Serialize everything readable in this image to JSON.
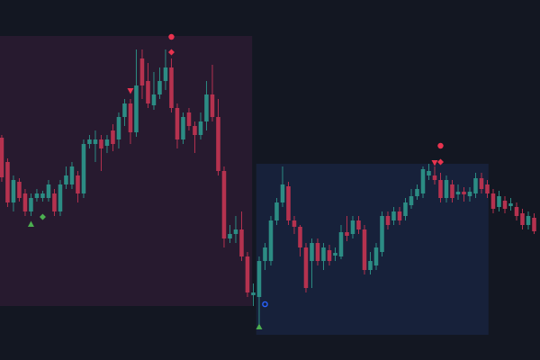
{
  "chart_data": {
    "type": "candlestick",
    "up_color": "#2c8c84",
    "down_color": "#b5324f",
    "xlim": [
      -0.3,
      92
    ],
    "ylim": [
      0,
      400
    ],
    "open": [
      247,
      220,
      175,
      198,
      185,
      165,
      180,
      180,
      180,
      185,
      165,
      195,
      195,
      205,
      185,
      240,
      240,
      245,
      238,
      255,
      245,
      270,
      285,
      253,
      335,
      310,
      283,
      295,
      310,
      325,
      280,
      245,
      275,
      260,
      250,
      265,
      295,
      270,
      210,
      135,
      140,
      145,
      115,
      72,
      70,
      110,
      110,
      155,
      175,
      193,
      155,
      148,
      125,
      110,
      130,
      110,
      122,
      116,
      115,
      142,
      140,
      155,
      145,
      100,
      105,
      120,
      160,
      155,
      165,
      160,
      172,
      182,
      185,
      205,
      205,
      200,
      180,
      195,
      184,
      187,
      182,
      185,
      202,
      195,
      185,
      170,
      177,
      171,
      170,
      163,
      150,
      158
    ],
    "high": [
      250,
      224,
      205,
      202,
      190,
      185,
      190,
      188,
      200,
      190,
      200,
      215,
      220,
      210,
      245,
      250,
      255,
      250,
      250,
      262,
      275,
      290,
      290,
      345,
      345,
      330,
      320,
      325,
      345,
      335,
      285,
      275,
      280,
      265,
      275,
      310,
      328,
      290,
      215,
      150,
      160,
      165,
      120,
      85,
      115,
      130,
      160,
      180,
      215,
      198,
      160,
      150,
      130,
      135,
      135,
      130,
      128,
      125,
      150,
      160,
      160,
      160,
      150,
      120,
      130,
      165,
      165,
      170,
      170,
      180,
      190,
      195,
      215,
      218,
      215,
      208,
      205,
      200,
      195,
      192,
      192,
      208,
      208,
      200,
      190,
      188,
      182,
      180,
      175,
      168,
      165,
      163
    ],
    "low": [
      198,
      170,
      165,
      176,
      160,
      160,
      176,
      176,
      176,
      160,
      160,
      190,
      190,
      175,
      180,
      235,
      220,
      210,
      230,
      232,
      235,
      260,
      240,
      248,
      290,
      280,
      278,
      290,
      300,
      275,
      235,
      240,
      255,
      230,
      245,
      255,
      265,
      205,
      125,
      130,
      130,
      110,
      70,
      60,
      40,
      100,
      105,
      150,
      170,
      150,
      140,
      115,
      75,
      80,
      105,
      100,
      105,
      110,
      112,
      132,
      135,
      140,
      95,
      95,
      100,
      115,
      145,
      150,
      150,
      155,
      168,
      178,
      180,
      200,
      195,
      175,
      175,
      175,
      178,
      176,
      176,
      180,
      185,
      180,
      163,
      165,
      163,
      166,
      155,
      145,
      145,
      140
    ],
    "close": [
      203,
      175,
      200,
      180,
      165,
      180,
      185,
      185,
      195,
      165,
      195,
      205,
      215,
      185,
      240,
      245,
      245,
      235,
      245,
      240,
      270,
      285,
      253,
      305,
      305,
      285,
      295,
      310,
      325,
      280,
      245,
      270,
      260,
      250,
      265,
      295,
      270,
      210,
      135,
      140,
      145,
      115,
      75,
      75,
      110,
      125,
      155,
      175,
      195,
      155,
      148,
      125,
      80,
      130,
      110,
      125,
      110,
      119,
      142,
      138,
      155,
      145,
      100,
      110,
      125,
      160,
      150,
      165,
      155,
      175,
      182,
      190,
      212,
      210,
      200,
      180,
      200,
      180,
      187,
      184,
      187,
      202,
      190,
      185,
      168,
      182,
      168,
      174,
      160,
      150,
      160,
      143
    ],
    "zones": [
      {
        "x": [
          -0.3,
          42.8
        ],
        "y": [
          60,
          360
        ],
        "color": "#271a2f"
      },
      {
        "x": [
          43.5,
          83.2
        ],
        "y": [
          28,
          218
        ],
        "color": "#17213a"
      }
    ],
    "markers": [
      {
        "index": 29,
        "value": 359,
        "shape": "circle",
        "color": "#e8334f"
      },
      {
        "index": 29,
        "value": 342,
        "shape": "diamond",
        "color": "#e8334f"
      },
      {
        "index": 22,
        "value": 299,
        "shape": "triangle-down",
        "color": "#e8334f"
      },
      {
        "index": 5,
        "value": 151,
        "shape": "triangle-up",
        "color": "#4caf50"
      },
      {
        "index": 7,
        "value": 159,
        "shape": "diamond",
        "color": "#4caf50"
      },
      {
        "index": 45,
        "value": 62,
        "shape": "circle-open",
        "color": "#2962ff"
      },
      {
        "index": 44,
        "value": 37,
        "shape": "triangle-up",
        "color": "#4caf50"
      },
      {
        "index": 75,
        "value": 238,
        "shape": "circle",
        "color": "#e8334f"
      },
      {
        "index": 74,
        "value": 219,
        "shape": "triangle-down",
        "color": "#e8334f"
      },
      {
        "index": 75,
        "value": 220,
        "shape": "diamond",
        "color": "#e8334f"
      }
    ]
  }
}
